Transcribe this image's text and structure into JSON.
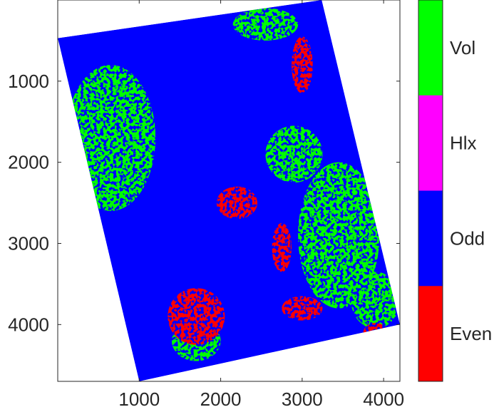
{
  "chart_data": {
    "type": "heatmap",
    "title": "",
    "xlabel": "",
    "ylabel": "",
    "xlim": [
      0,
      4200
    ],
    "ylim": [
      4700,
      0
    ],
    "x_ticks": [
      {
        "value": 1000,
        "label": "1000"
      },
      {
        "value": 2000,
        "label": "2000"
      },
      {
        "value": 3000,
        "label": "3000"
      },
      {
        "value": 4000,
        "label": "4000"
      }
    ],
    "y_ticks": [
      {
        "value": 1000,
        "label": "1000"
      },
      {
        "value": 2000,
        "label": "2000"
      },
      {
        "value": 3000,
        "label": "3000"
      },
      {
        "value": 4000,
        "label": "4000"
      }
    ],
    "image_footprint": [
      [
        0,
        470
      ],
      [
        3240,
        0
      ],
      [
        4200,
        4000
      ],
      [
        1000,
        4700
      ]
    ],
    "legend_position": "colorbar-right",
    "colorbar": [
      {
        "label": "Vol",
        "color": "#00ff00"
      },
      {
        "label": "Hlx",
        "color": "#ff00ff"
      },
      {
        "label": "Odd",
        "color": "#0000ff"
      },
      {
        "label": "Even",
        "color": "#ff0000"
      }
    ],
    "class_regions": [
      {
        "class": "Vol",
        "cx": 650,
        "cy": 1700,
        "rx": 550,
        "ry": 900
      },
      {
        "class": "Vol",
        "cx": 3450,
        "cy": 2900,
        "rx": 500,
        "ry": 900
      },
      {
        "class": "Vol",
        "cx": 3900,
        "cy": 3700,
        "rx": 300,
        "ry": 350
      },
      {
        "class": "Vol",
        "cx": 2900,
        "cy": 1900,
        "rx": 350,
        "ry": 350
      },
      {
        "class": "Vol",
        "cx": 1700,
        "cy": 4200,
        "rx": 300,
        "ry": 250
      },
      {
        "class": "Vol",
        "cx": 2550,
        "cy": 300,
        "rx": 400,
        "ry": 200
      },
      {
        "class": "Even",
        "cx": 1700,
        "cy": 3900,
        "rx": 350,
        "ry": 350
      },
      {
        "class": "Even",
        "cx": 2200,
        "cy": 2500,
        "rx": 250,
        "ry": 200
      },
      {
        "class": "Even",
        "cx": 2750,
        "cy": 3050,
        "rx": 120,
        "ry": 300
      },
      {
        "class": "Even",
        "cx": 3000,
        "cy": 800,
        "rx": 130,
        "ry": 350
      },
      {
        "class": "Even",
        "cx": 3900,
        "cy": 4100,
        "rx": 150,
        "ry": 120
      },
      {
        "class": "Even",
        "cx": 3000,
        "cy": 3800,
        "rx": 250,
        "ry": 150
      }
    ]
  }
}
